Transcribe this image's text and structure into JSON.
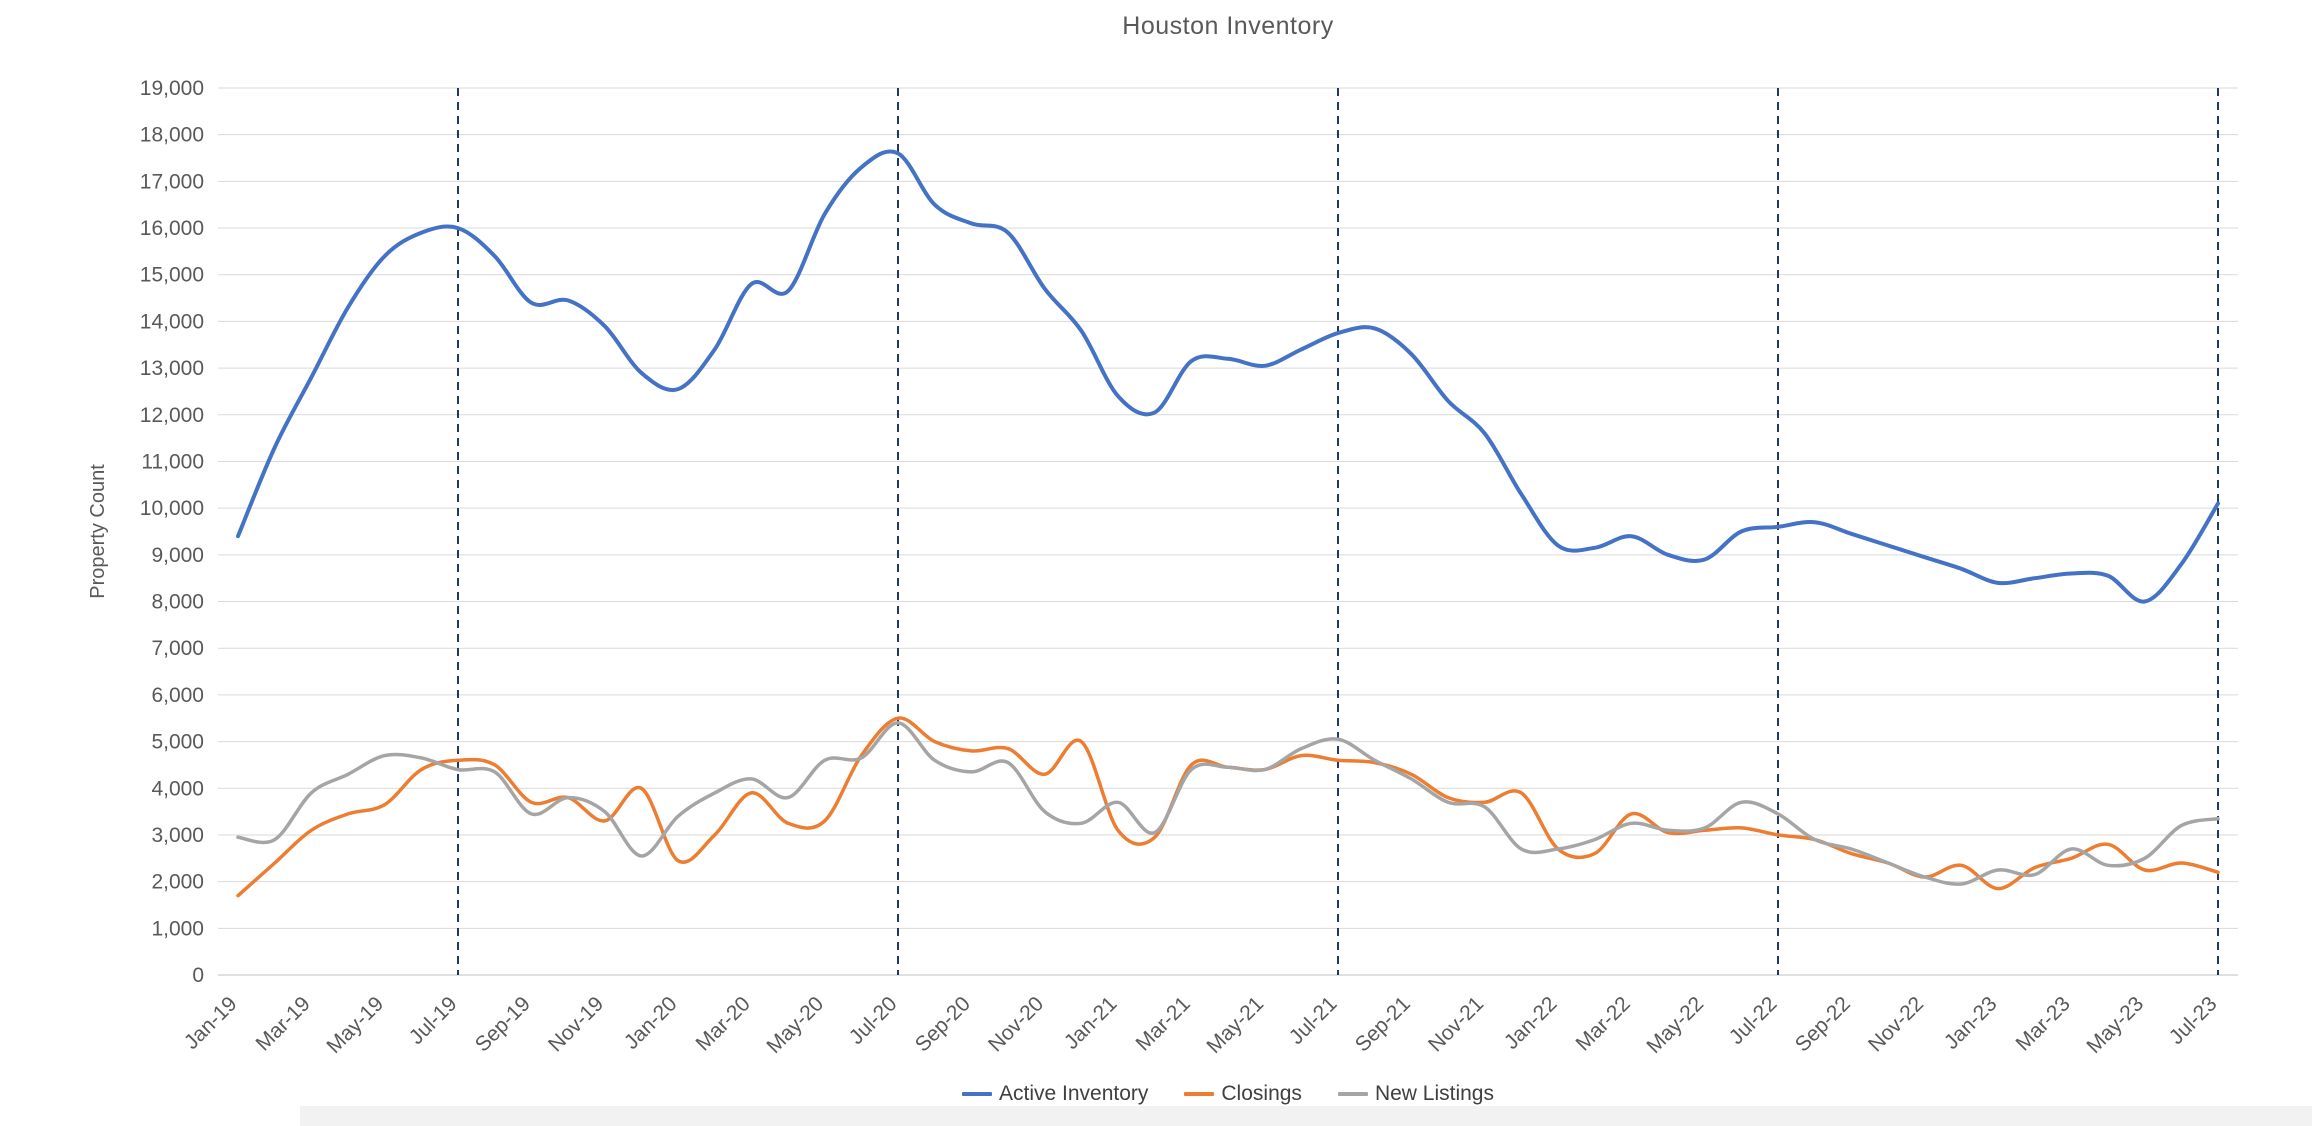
{
  "chart_data": {
    "type": "line",
    "title": "Houston Inventory",
    "xlabel": "",
    "ylabel": "Property Count",
    "ylim": [
      0,
      19000
    ],
    "ytick_step": 1000,
    "grid": true,
    "legend_position": "bottom",
    "xtick_every": 2,
    "xtick_rotation": -45,
    "grid_color": "#d9d9d9",
    "axis_line_color": "#bfbfbf",
    "axis_text_color": "#595959",
    "vline_color": "#1f3864",
    "vlines": [
      "Jul-19",
      "Jul-20",
      "Jul-21",
      "Jul-22",
      "Jul-23"
    ],
    "x": [
      "Jan-19",
      "Feb-19",
      "Mar-19",
      "Apr-19",
      "May-19",
      "Jun-19",
      "Jul-19",
      "Aug-19",
      "Sep-19",
      "Oct-19",
      "Nov-19",
      "Dec-19",
      "Jan-20",
      "Feb-20",
      "Mar-20",
      "Apr-20",
      "May-20",
      "Jun-20",
      "Jul-20",
      "Aug-20",
      "Sep-20",
      "Oct-20",
      "Nov-20",
      "Dec-20",
      "Jan-21",
      "Feb-21",
      "Mar-21",
      "Apr-21",
      "May-21",
      "Jun-21",
      "Jul-21",
      "Aug-21",
      "Sep-21",
      "Oct-21",
      "Nov-21",
      "Dec-21",
      "Jan-22",
      "Feb-22",
      "Mar-22",
      "Apr-22",
      "May-22",
      "Jun-22",
      "Jul-22",
      "Aug-22",
      "Sep-22",
      "Oct-22",
      "Nov-22",
      "Dec-22",
      "Jan-23",
      "Feb-23",
      "Mar-23",
      "Apr-23",
      "May-23",
      "Jun-23",
      "Jul-23"
    ],
    "series": [
      {
        "name": "Active Inventory",
        "color": "#4472c4",
        "width": 4,
        "values": [
          9400,
          11300,
          12800,
          14300,
          15400,
          15900,
          16000,
          15400,
          14400,
          14450,
          13900,
          12900,
          12550,
          13400,
          14800,
          14650,
          16300,
          17300,
          17600,
          16500,
          16100,
          15900,
          14700,
          13800,
          12400,
          12050,
          13150,
          13200,
          13050,
          13400,
          13750,
          13850,
          13300,
          12300,
          11600,
          10300,
          9200,
          9150,
          9400,
          9000,
          8900,
          9500,
          9600,
          9700,
          9450,
          9200,
          8950,
          8700,
          8400,
          8500,
          8600,
          8550,
          8000,
          8800,
          10100
        ]
      },
      {
        "name": "Closings",
        "color": "#ed7d31",
        "width": 3.5,
        "values": [
          1700,
          2400,
          3100,
          3450,
          3650,
          4400,
          4600,
          4500,
          3700,
          3800,
          3300,
          4000,
          2450,
          3000,
          3900,
          3250,
          3300,
          4700,
          5500,
          5000,
          4800,
          4850,
          4300,
          5000,
          3100,
          2950,
          4500,
          4450,
          4400,
          4700,
          4600,
          4550,
          4300,
          3800,
          3700,
          3900,
          2700,
          2600,
          3450,
          3050,
          3100,
          3150,
          3000,
          2900,
          2600,
          2400,
          2100,
          2350,
          1850,
          2300,
          2500,
          2800,
          2250,
          2400,
          2200
        ]
      },
      {
        "name": "New Listings",
        "color": "#a5a5a5",
        "width": 3.5,
        "values": [
          2950,
          2900,
          3900,
          4300,
          4700,
          4650,
          4400,
          4350,
          3450,
          3800,
          3500,
          2550,
          3400,
          3900,
          4200,
          3800,
          4600,
          4650,
          5400,
          4600,
          4350,
          4550,
          3500,
          3250,
          3700,
          3050,
          4400,
          4450,
          4400,
          4850,
          5050,
          4600,
          4200,
          3700,
          3600,
          2700,
          2700,
          2900,
          3250,
          3100,
          3150,
          3700,
          3450,
          2900,
          2700,
          2400,
          2100,
          1950,
          2250,
          2150,
          2700,
          2350,
          2500,
          3200,
          3350
        ]
      }
    ]
  }
}
